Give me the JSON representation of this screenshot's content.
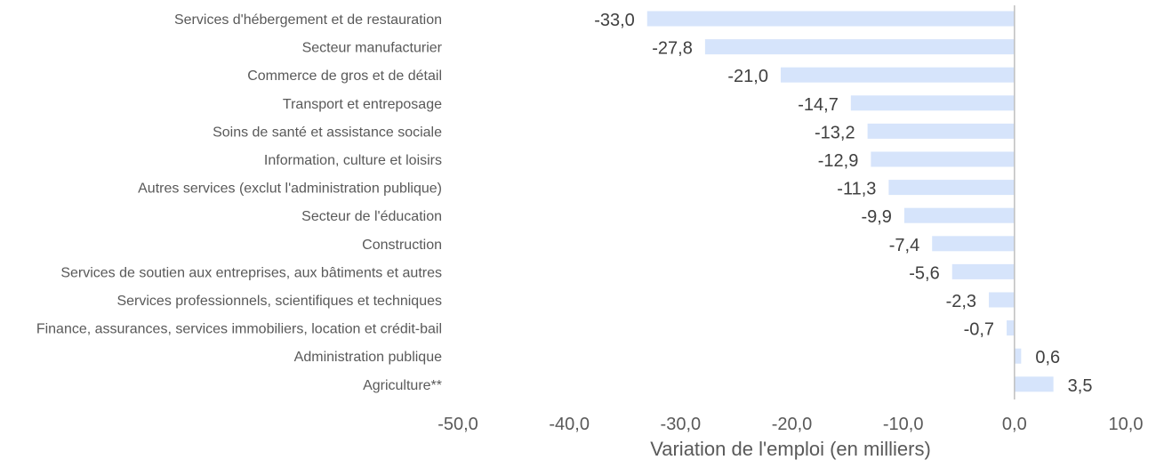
{
  "chart_data": {
    "type": "bar",
    "orientation": "horizontal",
    "categories": [
      "Services d'hébergement et de restauration",
      "Secteur manufacturier",
      "Commerce de gros et de détail",
      "Transport et entreposage",
      "Soins de santé et assistance sociale",
      "Information, culture et loisirs",
      "Autres services (exclut l'administration publique)",
      "Secteur de l'éducation",
      "Construction",
      "Services de soutien aux entreprises, aux bâtiments et autres",
      "Services professionnels, scientifiques et techniques",
      "Finance, assurances, services immobiliers, location et crédit-bail",
      "Administration publique",
      "Agriculture**"
    ],
    "values": [
      -33.0,
      -27.8,
      -21.0,
      -14.7,
      -13.2,
      -12.9,
      -11.3,
      -9.9,
      -7.4,
      -5.6,
      -2.3,
      -0.7,
      0.6,
      3.5
    ],
    "value_labels": [
      "-33,0",
      "-27,8",
      "-21,0",
      "-14,7",
      "-13,2",
      "-12,9",
      "-11,3",
      "-9,9",
      "-7,4",
      "-5,6",
      "-2,3",
      "-0,7",
      "0,6",
      "3,5"
    ],
    "xlabel": "Variation de l'emploi (en milliers)",
    "xlim": [
      -50,
      10
    ],
    "xticks": [
      -50,
      -40,
      -30,
      -20,
      -10,
      0,
      10
    ],
    "xtick_labels": [
      "-50,0",
      "-40,0",
      "-30,0",
      "-20,0",
      "-10,0",
      "0,0",
      "10,0"
    ],
    "grid": false,
    "colors": {
      "bar": "#d6e4fb",
      "zero_line": "#bfbfbf"
    }
  }
}
